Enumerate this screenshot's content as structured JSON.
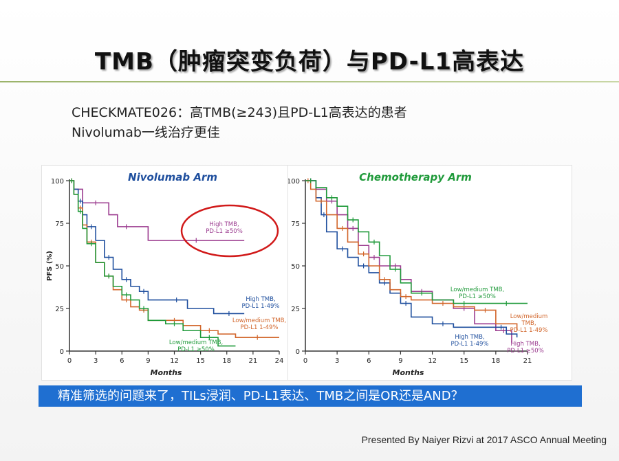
{
  "slide": {
    "title": "TMB（肿瘤突变负荷）与PD-L1高表达",
    "subtitle_line1": "CHECKMATE026：高TMB(≥243)且PD-L1高表达的患者",
    "subtitle_line2": "Nivolumab一线治疗更佳",
    "banner": "精准筛选的问题来了，TILs浸润、PD-L1表达、TMB之间是OR还是AND？",
    "footer": "Presented By Naiyer Rizvi at 2017 ASCO Annual Meeting"
  },
  "colors": {
    "high_tmb_pdl1_50": "#9b3b8f",
    "high_tmb_pdl1_1_49": "#1f4f9e",
    "low_medium_tmb_pdl1_1_49": "#d2662b",
    "low_medium_tmb_pdl1_50": "#1f9a3a",
    "nivo_title": "#1f4f9e",
    "chemo_title": "#1f9a3a",
    "ellipse": "#d11a1a"
  },
  "chart_data": [
    {
      "type": "line",
      "title": "Nivolumab Arm",
      "xlabel": "Months",
      "ylabel": "PFS (%)",
      "xlim": [
        0,
        24
      ],
      "ylim": [
        0,
        100
      ],
      "xticks": [
        0,
        3,
        6,
        9,
        12,
        15,
        18,
        21,
        24
      ],
      "yticks": [
        0,
        25,
        50,
        75,
        100
      ],
      "series": [
        {
          "name": "High TMB, PD-L1 ≥50%",
          "color_key": "high_tmb_pdl1_50",
          "x": [
            0,
            0.5,
            1.5,
            4.5,
            5.5,
            7.5,
            9,
            20
          ],
          "y": [
            100,
            95,
            87,
            80,
            73,
            73,
            65,
            65
          ]
        },
        {
          "name": "High TMB, PD-L1 1–49%",
          "color_key": "high_tmb_pdl1_1_49",
          "x": [
            0,
            0.5,
            1,
            1.5,
            2,
            3,
            4,
            5,
            6,
            7,
            8,
            9,
            11,
            13.5,
            16.5,
            20
          ],
          "y": [
            100,
            95,
            88,
            80,
            73,
            65,
            55,
            48,
            42,
            38,
            35,
            30,
            30,
            25,
            22,
            22
          ]
        },
        {
          "name": "Low/medium TMB, PD-L1 1–49%",
          "color_key": "low_medium_tmb_pdl1_1_49",
          "x": [
            0,
            0.5,
            1,
            1.5,
            2,
            3,
            4,
            5,
            6,
            7,
            8,
            9,
            11,
            13,
            15,
            17,
            19,
            24
          ],
          "y": [
            100,
            92,
            84,
            74,
            64,
            52,
            44,
            36,
            30,
            26,
            24,
            18,
            18,
            15,
            12,
            10,
            8,
            8
          ]
        },
        {
          "name": "Low/medium TMB, PD-L1 ≥50%",
          "color_key": "low_medium_tmb_pdl1_50",
          "x": [
            0,
            0.5,
            1,
            1.5,
            2,
            3,
            4,
            5,
            6,
            7,
            8,
            9,
            11,
            13,
            15,
            17,
            19
          ],
          "y": [
            100,
            92,
            82,
            72,
            63,
            52,
            44,
            38,
            33,
            30,
            25,
            18,
            16,
            12,
            8,
            3,
            3
          ]
        }
      ],
      "annotations": [
        {
          "text_lines": [
            "High TMB,",
            "PD-L1 ≥50%"
          ],
          "color_key": "high_tmb_pdl1_50"
        },
        {
          "text_lines": [
            "High TMB,",
            "PD-L1 1-49%"
          ],
          "color_key": "high_tmb_pdl1_1_49"
        },
        {
          "text_lines": [
            "Low/medium TMB,",
            "PD-L1 1-49%"
          ],
          "color_key": "low_medium_tmb_pdl1_1_49"
        },
        {
          "text_lines": [
            "Low/medium TMB,",
            "PD-L1 ≥50%"
          ],
          "color_key": "low_medium_tmb_pdl1_50"
        }
      ]
    },
    {
      "type": "line",
      "title": "Chemotherapy Arm",
      "xlabel": "Months",
      "ylabel": "",
      "xlim": [
        0,
        21
      ],
      "ylim": [
        0,
        100
      ],
      "xticks": [
        0,
        3,
        6,
        9,
        12,
        15,
        18,
        21
      ],
      "yticks": [
        0,
        25,
        50,
        75,
        100
      ],
      "series": [
        {
          "name": "High TMB, PD-L1 ≥50%",
          "color_key": "high_tmb_pdl1_50",
          "x": [
            0,
            1,
            2,
            3,
            4,
            5,
            6,
            7,
            8,
            9,
            10,
            12,
            14,
            16,
            18,
            19.5
          ],
          "y": [
            100,
            95,
            88,
            80,
            72,
            62,
            55,
            50,
            50,
            42,
            35,
            30,
            25,
            16,
            12,
            5
          ]
        },
        {
          "name": "High TMB, PD-L1 1–49%",
          "color_key": "high_tmb_pdl1_1_49",
          "x": [
            0,
            1,
            1.5,
            2,
            3,
            4,
            5,
            6,
            7,
            8,
            9,
            10,
            12,
            14,
            18,
            19,
            20
          ],
          "y": [
            100,
            90,
            80,
            70,
            60,
            55,
            50,
            46,
            40,
            34,
            28,
            20,
            16,
            14,
            14,
            10,
            8
          ]
        },
        {
          "name": "Low/medium TMB, PD-L1 1–49%",
          "color_key": "low_medium_tmb_pdl1_1_49",
          "x": [
            0,
            0.5,
            1,
            2,
            3,
            4,
            5,
            6,
            7,
            8,
            9,
            10,
            12,
            14,
            16,
            18,
            20
          ],
          "y": [
            100,
            95,
            88,
            80,
            72,
            64,
            57,
            50,
            42,
            36,
            32,
            30,
            28,
            26,
            24,
            16,
            12
          ]
        },
        {
          "name": "Low/medium TMB, PD-L1 ≥50%",
          "color_key": "low_medium_tmb_pdl1_50",
          "x": [
            0,
            1,
            2,
            3,
            4,
            5,
            6,
            7,
            8,
            9,
            10,
            12,
            14,
            16,
            18,
            20,
            21
          ],
          "y": [
            100,
            96,
            90,
            85,
            77,
            70,
            64,
            56,
            48,
            40,
            34,
            30,
            28,
            28,
            28,
            28,
            28
          ]
        }
      ],
      "annotations": [
        {
          "text_lines": [
            "Low/medium TMB,",
            "PD-L1 ≥50%"
          ],
          "color_key": "low_medium_tmb_pdl1_50"
        },
        {
          "text_lines": [
            "Low/medium",
            "TMB,",
            "PD-L1 1-49%"
          ],
          "color_key": "low_medium_tmb_pdl1_1_49"
        },
        {
          "text_lines": [
            "High TMB,",
            "PD-L1 1-49%"
          ],
          "color_key": "high_tmb_pdl1_1_49"
        },
        {
          "text_lines": [
            "High TMB,",
            "PD-L1 ≥50%"
          ],
          "color_key": "high_tmb_pdl1_50"
        }
      ]
    }
  ]
}
